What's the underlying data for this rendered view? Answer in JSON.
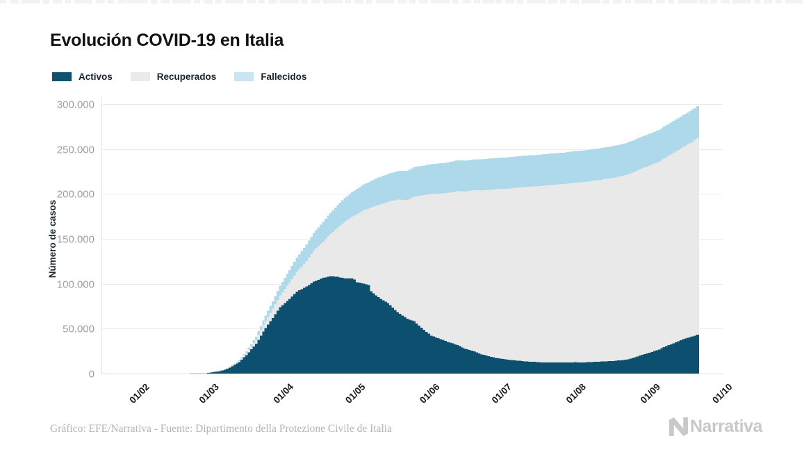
{
  "page": {
    "footer_credit": "Gráfico: EFE/Narrativa - Fuente: Dipartimento della Protezione Civile de Italia",
    "brand": "Narrativa"
  },
  "chart_data": {
    "type": "bar",
    "subtype": "stacked-daily-bars",
    "title": "Evolución COVID-19 en Italia",
    "ylabel": "Número de casos",
    "xlabel": "",
    "grid": "horizontal",
    "legend_position": "top-left",
    "series": [
      {
        "name": "Activos",
        "key": "a",
        "color": "#0d4f6e",
        "legend_color": "#0f516f"
      },
      {
        "name": "Recuperados",
        "key": "r",
        "color": "#e9e9e9",
        "legend_color": "#eaeaea"
      },
      {
        "name": "Fallecidos",
        "key": "f",
        "color": "#aed9eb",
        "legend_color": "#c7e5f2"
      }
    ],
    "x_unit": "days since 2020-02-01",
    "x_domain": [
      -17,
      242
    ],
    "x_ticks": [
      {
        "day": 0,
        "label": "01/02"
      },
      {
        "day": 29,
        "label": "01/03"
      },
      {
        "day": 60,
        "label": "01/04"
      },
      {
        "day": 90,
        "label": "01/05"
      },
      {
        "day": 121,
        "label": "01/06"
      },
      {
        "day": 151,
        "label": "01/07"
      },
      {
        "day": 182,
        "label": "01/08"
      },
      {
        "day": 213,
        "label": "01/09"
      },
      {
        "day": 243,
        "label": "01/10"
      }
    ],
    "ylim": [
      0,
      300000
    ],
    "y_ticks": [
      {
        "value": 0,
        "label": "0"
      },
      {
        "value": 50000,
        "label": "50.000"
      },
      {
        "value": 100000,
        "label": "100.000"
      },
      {
        "value": 150000,
        "label": "150.000"
      },
      {
        "value": 200000,
        "label": "200.000"
      },
      {
        "value": 250000,
        "label": "250.000"
      },
      {
        "value": 300000,
        "label": "300.000"
      }
    ],
    "points_format": [
      "day",
      "activos",
      "recuperados",
      "fallecidos"
    ],
    "points": [
      [
        -1,
        2,
        0,
        0
      ],
      [
        6,
        3,
        0,
        0
      ],
      [
        18,
        3,
        1,
        0
      ],
      [
        19,
        30,
        1,
        1
      ],
      [
        23,
        221,
        1,
        7
      ],
      [
        26,
        588,
        45,
        17
      ],
      [
        29,
        1577,
        83,
        34
      ],
      [
        33,
        3296,
        414,
        148
      ],
      [
        36,
        6387,
        622,
        366
      ],
      [
        40,
        12839,
        1258,
        1016
      ],
      [
        43,
        20603,
        2335,
        1809
      ],
      [
        47,
        33190,
        4440,
        3405
      ],
      [
        50,
        46638,
        7024,
        5476
      ],
      [
        54,
        62013,
        10361,
        8165
      ],
      [
        57,
        73880,
        13030,
        10779
      ],
      [
        61,
        83049,
        18278,
        13915
      ],
      [
        64,
        91246,
        21815,
        15887
      ],
      [
        68,
        96877,
        28470,
        18279
      ],
      [
        71,
        102253,
        34211,
        19899
      ],
      [
        75,
        106607,
        40164,
        22170
      ],
      [
        78,
        108257,
        47055,
        23660
      ],
      [
        81,
        107699,
        54543,
        25085
      ],
      [
        84,
        105847,
        63120,
        26384
      ],
      [
        87,
        105813,
        68941,
        27359
      ],
      [
        88,
        104657,
        71252,
        27682
      ],
      [
        89,
        101551,
        75945,
        27967
      ],
      [
        92,
        100179,
        81654,
        28884
      ],
      [
        94,
        98467,
        85231,
        29315
      ],
      [
        95,
        91528,
        93245,
        29684
      ],
      [
        98,
        84842,
        103031,
        30395
      ],
      [
        102,
        78457,
        112541,
        31106
      ],
      [
        106,
        68351,
        125176,
        31908
      ],
      [
        110,
        60960,
        132282,
        32486
      ],
      [
        113,
        58233,
        138840,
        32785
      ],
      [
        116,
        50966,
        147101,
        33072
      ],
      [
        120,
        42097,
        157507,
        33415
      ],
      [
        124,
        38429,
        161895,
        33689
      ],
      [
        127,
        35262,
        165837,
        33899
      ],
      [
        131,
        31742,
        171338,
        34167
      ],
      [
        134,
        27779,
        174865,
        34345
      ],
      [
        138,
        24569,
        179455,
        34514
      ],
      [
        141,
        21412,
        182453,
        34634
      ],
      [
        145,
        18655,
        186111,
        34678
      ],
      [
        148,
        16836,
        188584,
        34716
      ],
      [
        152,
        15563,
        190248,
        34818
      ],
      [
        155,
        14642,
        192108,
        34861
      ],
      [
        159,
        13595,
        193978,
        34926
      ],
      [
        162,
        13179,
        194928,
        34954
      ],
      [
        166,
        12493,
        196246,
        35017
      ],
      [
        169,
        12404,
        197162,
        35058
      ],
      [
        173,
        12248,
        198192,
        35092
      ],
      [
        176,
        12255,
        198756,
        35107
      ],
      [
        180,
        12616,
        199974,
        35132
      ],
      [
        183,
        12327,
        200589,
        35154
      ],
      [
        187,
        12924,
        201642,
        35187
      ],
      [
        190,
        13263,
        202098,
        35205
      ],
      [
        194,
        13791,
        203326,
        35226
      ],
      [
        197,
        14249,
        204142,
        35396
      ],
      [
        201,
        15360,
        205470,
        35418
      ],
      [
        204,
        17354,
        206554,
        35437
      ],
      [
        208,
        20753,
        207653,
        35458
      ],
      [
        211,
        23156,
        208224,
        35473
      ],
      [
        215,
        26754,
        209027,
        35518
      ],
      [
        218,
        30566,
        210238,
        35534
      ],
      [
        222,
        34734,
        212432,
        35587
      ],
      [
        225,
        38193,
        213950,
        35610
      ],
      [
        228,
        40532,
        215954,
        35658
      ],
      [
        231,
        43161,
        218703,
        35692
      ]
    ]
  }
}
